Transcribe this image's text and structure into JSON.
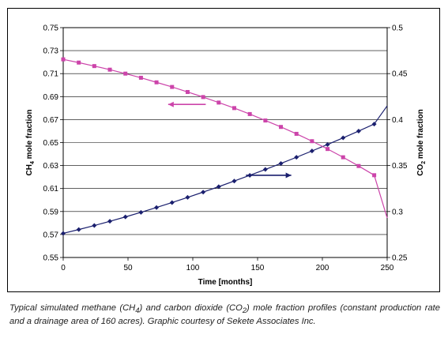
{
  "caption": {
    "p1": "Typical simulated methane (CH",
    "s1": "4",
    "p2": ") and carbon dioxide (CO",
    "s2": "2",
    "p3": ") mole fraction profiles (constant production rate and a drainage area of 160 acres). Graphic courtesy of Sekete Associates Inc."
  },
  "chart_data": {
    "type": "line",
    "title": "",
    "xlabel": "Time [months]",
    "ylabel_left": {
      "main": "CH",
      "sub": "4",
      "rest": " mole fraction"
    },
    "ylabel_right": {
      "main": "CO",
      "sub": "2",
      "rest": " mole fraction"
    },
    "xlim": [
      0,
      250
    ],
    "ylim_left": [
      0.55,
      0.75
    ],
    "ylim_right": [
      0.25,
      0.5
    ],
    "x_ticks": [
      "0",
      "50",
      "100",
      "150",
      "200",
      "250"
    ],
    "y_left_ticks": [
      "0.55",
      "0.57",
      "0.59",
      "0.61",
      "0.63",
      "0.65",
      "0.67",
      "0.69",
      "0.71",
      "0.73",
      "0.75"
    ],
    "y_right_ticks": [
      "0.25",
      "0.3",
      "0.35",
      "0.4",
      "0.45",
      "0.5"
    ],
    "grid": "horizontal",
    "series": [
      {
        "axis": "left",
        "color": "#1a1f6e",
        "marker": "diamond",
        "arrow": "right",
        "x": [
          0,
          12,
          24,
          36,
          48,
          60,
          72,
          84,
          96,
          108,
          120,
          132,
          144,
          156,
          168,
          180,
          192,
          204,
          216,
          228,
          240,
          250
        ],
        "values": [
          0.571,
          0.5743,
          0.5778,
          0.5815,
          0.5853,
          0.5893,
          0.5935,
          0.5978,
          0.6023,
          0.6069,
          0.6116,
          0.6165,
          0.6215,
          0.6266,
          0.6318,
          0.6372,
          0.6427,
          0.6483,
          0.6541,
          0.66,
          0.6661,
          0.6819
        ]
      },
      {
        "axis": "right",
        "color": "#cc44aa",
        "marker": "square",
        "arrow": "left",
        "x": [
          0,
          12,
          24,
          36,
          48,
          60,
          72,
          84,
          96,
          108,
          120,
          132,
          144,
          156,
          168,
          180,
          192,
          204,
          216,
          228,
          240,
          250
        ],
        "values": [
          0.4655,
          0.462,
          0.4582,
          0.4543,
          0.45,
          0.4455,
          0.4405,
          0.4355,
          0.43,
          0.4245,
          0.4185,
          0.4125,
          0.406,
          0.399,
          0.392,
          0.3845,
          0.3765,
          0.368,
          0.359,
          0.3495,
          0.3395,
          0.293
        ]
      }
    ],
    "arrows": [
      {
        "series": 0,
        "x_from": 141,
        "x_to": 176,
        "y": 0.6215
      },
      {
        "series": 1,
        "x_from": 110,
        "x_to": 81,
        "y": 0.4165
      }
    ]
  }
}
